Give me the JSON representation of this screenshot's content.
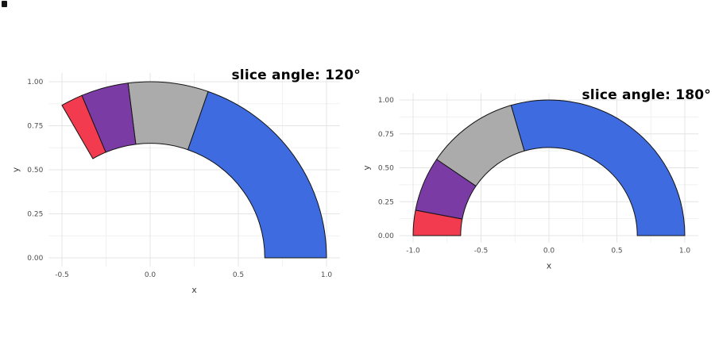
{
  "page": {
    "background": "#ffffff"
  },
  "chart_data": [
    {
      "type": "donut-arc",
      "title": "slice angle: 120°",
      "slice_angle_deg": 120,
      "start_angle_deg": 0,
      "inner_radius": 0.65,
      "outer_radius": 1.0,
      "slices": [
        {
          "name": "blue",
          "color": "#3E6BE0",
          "fraction": 0.59
        },
        {
          "name": "gray",
          "color": "#ABABAB",
          "fraction": 0.22
        },
        {
          "name": "purple",
          "color": "#7B3BA5",
          "fraction": 0.13
        },
        {
          "name": "red",
          "color": "#F23B4E",
          "fraction": 0.06
        }
      ],
      "xlabel": "x",
      "ylabel": "y",
      "xlim": [
        -0.5,
        1.0
      ],
      "ylim": [
        0.0,
        1.0
      ],
      "x_ticks": [
        -0.5,
        0.0,
        0.5,
        1.0
      ],
      "x_tick_labels": [
        "-0.5",
        "0.0",
        "0.5",
        "1.0"
      ],
      "y_ticks": [
        0.0,
        0.25,
        0.5,
        0.75,
        1.0
      ],
      "y_tick_labels": [
        "0.00",
        "0.25",
        "0.50",
        "0.75",
        "1.00"
      ],
      "grid": true,
      "legend": "none"
    },
    {
      "type": "donut-arc",
      "title": "slice angle: 180°",
      "slice_angle_deg": 180,
      "start_angle_deg": 0,
      "inner_radius": 0.65,
      "outer_radius": 1.0,
      "slices": [
        {
          "name": "blue",
          "color": "#3E6BE0",
          "fraction": 0.59
        },
        {
          "name": "gray",
          "color": "#ABABAB",
          "fraction": 0.22
        },
        {
          "name": "purple",
          "color": "#7B3BA5",
          "fraction": 0.13
        },
        {
          "name": "red",
          "color": "#F23B4E",
          "fraction": 0.06
        }
      ],
      "xlabel": "x",
      "ylabel": "y",
      "xlim": [
        -1.0,
        1.0
      ],
      "ylim": [
        0.0,
        1.0
      ],
      "x_ticks": [
        -1.0,
        -0.5,
        0.0,
        0.5,
        1.0
      ],
      "x_tick_labels": [
        "-1.0",
        "-0.5",
        "0.0",
        "0.5",
        "1.0"
      ],
      "y_ticks": [
        0.0,
        0.25,
        0.5,
        0.75,
        1.0
      ],
      "y_tick_labels": [
        "0.00",
        "0.25",
        "0.50",
        "0.75",
        "1.00"
      ],
      "grid": true,
      "legend": "none"
    }
  ]
}
